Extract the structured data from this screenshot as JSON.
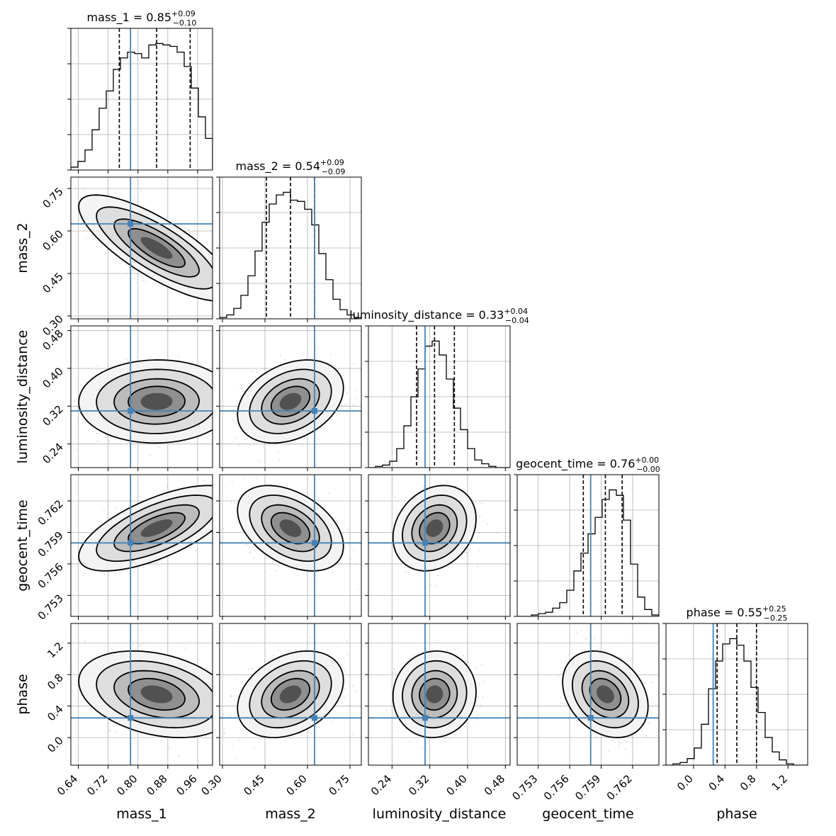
{
  "chart_data": {
    "type": "corner",
    "parameters": [
      {
        "name": "mass_1",
        "label": "mass_1",
        "range": [
          0.62,
          1.0
        ],
        "ticks": [
          "0.64",
          "0.72",
          "0.80",
          "0.88",
          "0.96"
        ],
        "truth": 0.78,
        "title": {
          "prefix": "mass_1 = 0.85",
          "sup": "+0.09",
          "sub": "−0.10"
        },
        "quantiles": [
          0.75,
          0.85,
          0.94
        ],
        "histogram": [
          0.02,
          0.06,
          0.14,
          0.28,
          0.43,
          0.55,
          0.7,
          0.78,
          0.82,
          0.81,
          0.78,
          0.87,
          0.88,
          0.87,
          0.86,
          0.82,
          0.72,
          0.57,
          0.37,
          0.22
        ]
      },
      {
        "name": "mass_2",
        "label": "mass_2",
        "range": [
          0.29,
          0.79
        ],
        "ticks": [
          "0.30",
          "0.45",
          "0.60",
          "0.75"
        ],
        "truth": 0.625,
        "title": {
          "prefix": "mass_2 = 0.54",
          "sup": "+0.09",
          "sub": "−0.09"
        },
        "quantiles": [
          0.455,
          0.54,
          0.625
        ],
        "histogram": [
          0.01,
          0.03,
          0.08,
          0.18,
          0.33,
          0.52,
          0.74,
          0.88,
          0.95,
          0.97,
          0.91,
          0.9,
          0.84,
          0.72,
          0.5,
          0.3,
          0.15,
          0.07,
          0.03,
          0.01
        ]
      },
      {
        "name": "luminosity_distance",
        "label": "luminosity_distance",
        "range": [
          0.19,
          0.49
        ],
        "ticks": [
          "0.24",
          "0.32",
          "0.40",
          "0.48"
        ],
        "truth": 0.31,
        "title": {
          "prefix": "luminosity_distance = 0.33",
          "sup": "+0.04",
          "sub": "−0.04"
        },
        "quantiles": [
          0.292,
          0.33,
          0.372
        ],
        "histogram": [
          0.0,
          0.01,
          0.02,
          0.05,
          0.15,
          0.33,
          0.56,
          0.78,
          0.96,
          1.0,
          0.89,
          0.7,
          0.47,
          0.3,
          0.15,
          0.06,
          0.03,
          0.01,
          0.0,
          0.0
        ]
      },
      {
        "name": "geocent_time",
        "label": "geocent_time",
        "range": [
          0.751,
          0.7645
        ],
        "ticks": [
          "0.753",
          "0.756",
          "0.759",
          "0.762"
        ],
        "truth": 0.758,
        "title": {
          "prefix": "geocent_time = 0.76",
          "sup": "+0.00",
          "sub": "−0.00"
        },
        "quantiles": [
          0.7573,
          0.7594,
          0.761
        ],
        "histogram": [
          0.0,
          0.0,
          0.01,
          0.02,
          0.03,
          0.06,
          0.1,
          0.19,
          0.33,
          0.46,
          0.6,
          0.72,
          0.85,
          0.92,
          0.88,
          0.7,
          0.38,
          0.14,
          0.05,
          0.01
        ]
      },
      {
        "name": "phase",
        "label": "phase",
        "range": [
          -0.35,
          1.45
        ],
        "ticks": [
          "0.0",
          "0.4",
          "0.8",
          "1.2"
        ],
        "truth": 0.25,
        "title": {
          "prefix": "phase = 0.55",
          "sup": "+0.25",
          "sub": "−0.25"
        },
        "quantiles": [
          0.3,
          0.55,
          0.8
        ],
        "histogram": [
          0.0,
          0.01,
          0.02,
          0.05,
          0.13,
          0.31,
          0.58,
          0.79,
          0.92,
          0.96,
          0.91,
          0.79,
          0.59,
          0.4,
          0.21,
          0.1,
          0.04,
          0.01,
          0.0,
          0.0
        ]
      }
    ],
    "correlations": [
      [
        1,
        -0.78,
        0.02,
        0.66,
        -0.3
      ],
      [
        -0.78,
        1,
        0.32,
        -0.42,
        0.32
      ],
      [
        0.02,
        0.32,
        1,
        0.22,
        0.05
      ],
      [
        0.66,
        -0.42,
        0.22,
        1,
        -0.28
      ],
      [
        -0.3,
        0.32,
        0.05,
        -0.28,
        1
      ]
    ],
    "truth_color": "#4682b4",
    "histogram_color": "#000000",
    "grid": true
  }
}
